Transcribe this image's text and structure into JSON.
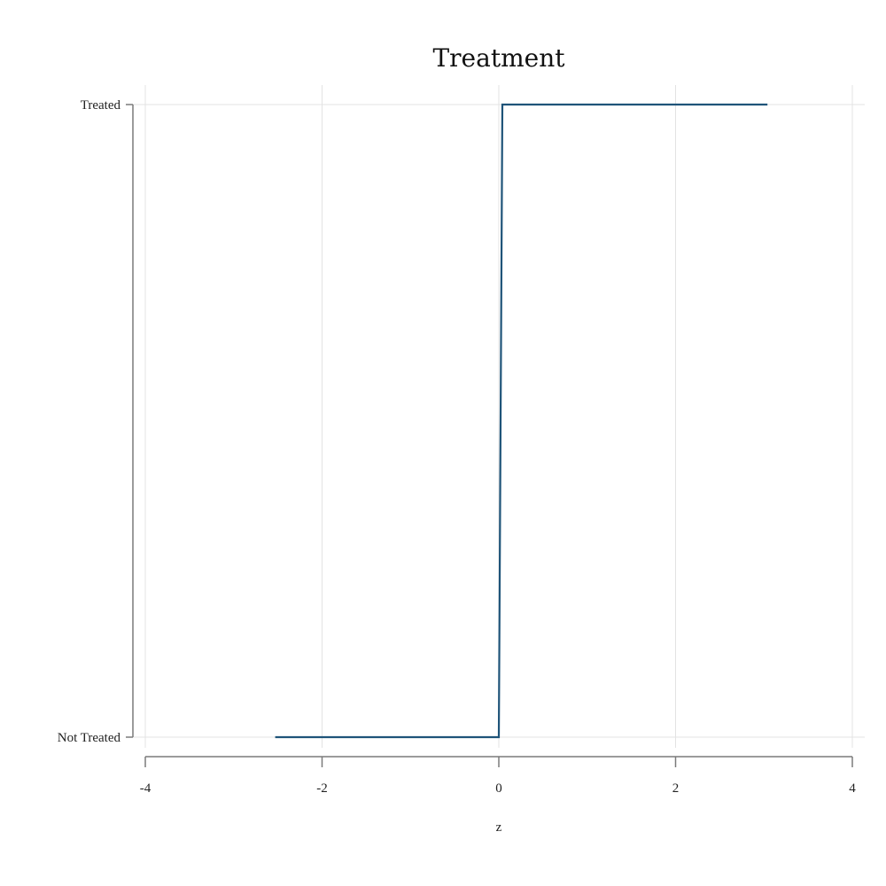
{
  "chart_data": {
    "type": "line",
    "title": "Treatment",
    "xlabel": "z",
    "ylabel": "",
    "xlim": [
      -4,
      4
    ],
    "x_ticks": [
      -4,
      -2,
      0,
      2,
      4
    ],
    "x_tick_labels": [
      "-4",
      "-2",
      "0",
      "2",
      "4"
    ],
    "y_categories": [
      "Not Treated",
      "Treated"
    ],
    "grid": true,
    "legend": "none",
    "series": [
      {
        "color": "#1f5479",
        "x": [
          -2.53,
          0.0,
          0.04,
          3.04
        ],
        "y": [
          0,
          0,
          1,
          1
        ]
      }
    ]
  }
}
